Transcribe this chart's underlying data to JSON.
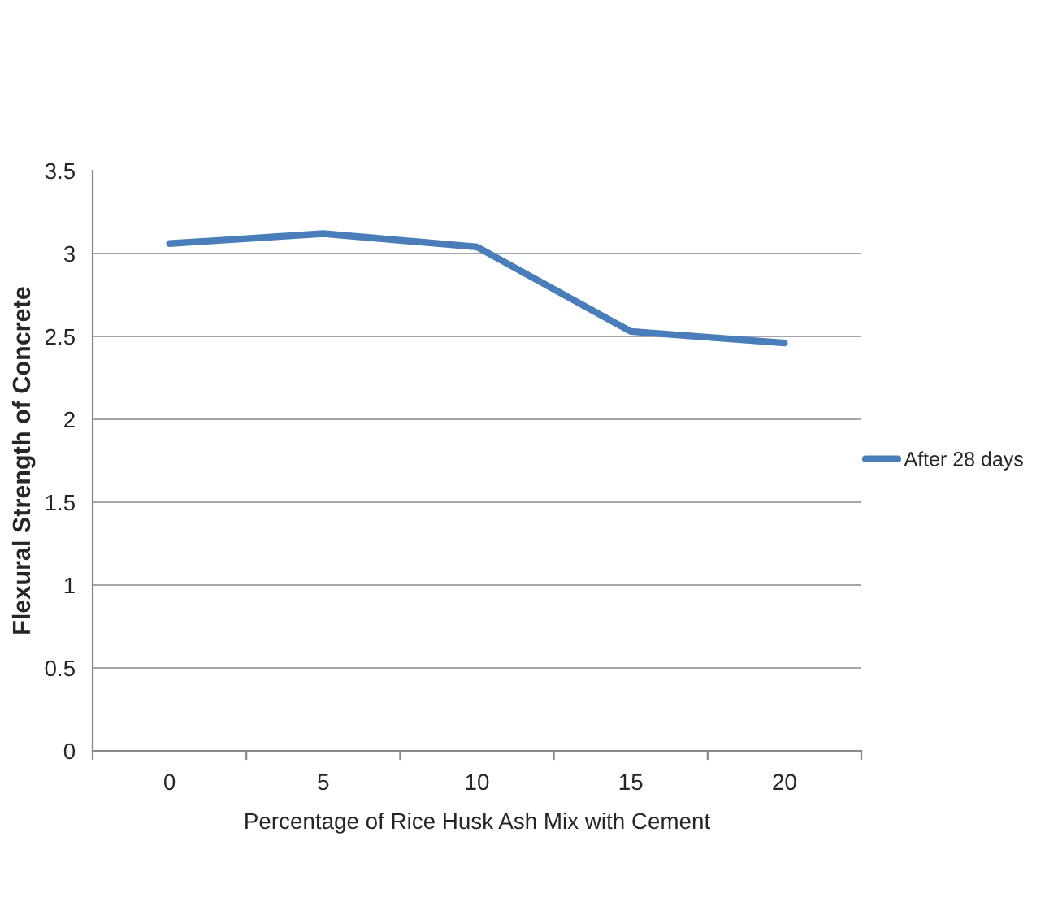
{
  "chart_data": {
    "type": "line",
    "xlabel": "Percentage of Rice Husk Ash Mix with Cement",
    "ylabel": "Flexural Strength of Concrete",
    "categories": [
      "0",
      "5",
      "10",
      "15",
      "20"
    ],
    "series": [
      {
        "name": "After 28 days",
        "color": "#4a7ebb",
        "values": [
          3.06,
          3.12,
          3.04,
          2.53,
          2.46
        ]
      }
    ],
    "ylim": [
      0,
      3.5
    ],
    "yticks": [
      0,
      0.5,
      1,
      1.5,
      2,
      2.5,
      3,
      3.5
    ],
    "grid": "y",
    "legend": "right",
    "marker": "none"
  }
}
